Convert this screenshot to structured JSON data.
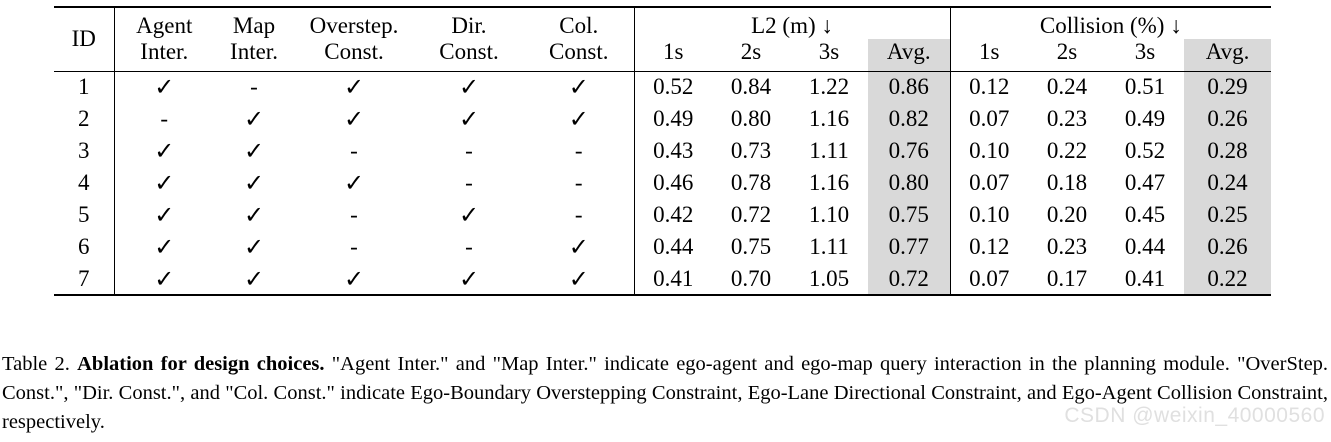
{
  "table": {
    "headers": {
      "id": "ID",
      "agent": [
        "Agent",
        "Inter."
      ],
      "map": [
        "Map",
        "Inter."
      ],
      "overstep": [
        "Overstep.",
        "Const."
      ],
      "dir": [
        "Dir.",
        "Const."
      ],
      "col": [
        "Col.",
        "Const."
      ],
      "l2_group": "L2 (m) ↓",
      "collision_group": "Collision (%) ↓",
      "sub": [
        "1s",
        "2s",
        "3s",
        "Avg."
      ]
    },
    "rows": [
      {
        "id": "1",
        "flags": [
          "✓",
          "-",
          "✓",
          "✓",
          "✓"
        ],
        "l2": [
          "0.52",
          "0.84",
          "1.22",
          "0.86"
        ],
        "col": [
          "0.12",
          "0.24",
          "0.51",
          "0.29"
        ]
      },
      {
        "id": "2",
        "flags": [
          "-",
          "✓",
          "✓",
          "✓",
          "✓"
        ],
        "l2": [
          "0.49",
          "0.80",
          "1.16",
          "0.82"
        ],
        "col": [
          "0.07",
          "0.23",
          "0.49",
          "0.26"
        ]
      },
      {
        "id": "3",
        "flags": [
          "✓",
          "✓",
          "-",
          "-",
          "-"
        ],
        "l2": [
          "0.43",
          "0.73",
          "1.11",
          "0.76"
        ],
        "col": [
          "0.10",
          "0.22",
          "0.52",
          "0.28"
        ]
      },
      {
        "id": "4",
        "flags": [
          "✓",
          "✓",
          "✓",
          "-",
          "-"
        ],
        "l2": [
          "0.46",
          "0.78",
          "1.16",
          "0.80"
        ],
        "col": [
          "0.07",
          "0.18",
          "0.47",
          "0.24"
        ]
      },
      {
        "id": "5",
        "flags": [
          "✓",
          "✓",
          "-",
          "✓",
          "-"
        ],
        "l2": [
          "0.42",
          "0.72",
          "1.10",
          "0.75"
        ],
        "col": [
          "0.10",
          "0.20",
          "0.45",
          "0.25"
        ]
      },
      {
        "id": "6",
        "flags": [
          "✓",
          "✓",
          "-",
          "-",
          "✓"
        ],
        "l2": [
          "0.44",
          "0.75",
          "1.11",
          "0.77"
        ],
        "col": [
          "0.12",
          "0.23",
          "0.44",
          "0.26"
        ]
      },
      {
        "id": "7",
        "flags": [
          "✓",
          "✓",
          "✓",
          "✓",
          "✓"
        ],
        "l2": [
          "0.41",
          "0.70",
          "1.05",
          "0.72"
        ],
        "col": [
          "0.07",
          "0.17",
          "0.41",
          "0.22"
        ]
      }
    ]
  },
  "caption": {
    "label": "Table 2.",
    "bold": "Ablation for design choices.",
    "text": "\"Agent Inter.\" and \"Map Inter.\" indicate ego-agent and ego-map query interaction in the planning module. \"OverStep. Const.\", \"Dir. Const.\", and \"Col. Const.\" indicate Ego-Boundary Overstepping Constraint, Ego-Lane Directional Constraint, and Ego-Agent Collision Constraint, respectively."
  },
  "watermark": "CSDN @weixin_40000560",
  "colors": {
    "avg_shade": "#d9d9d9"
  }
}
